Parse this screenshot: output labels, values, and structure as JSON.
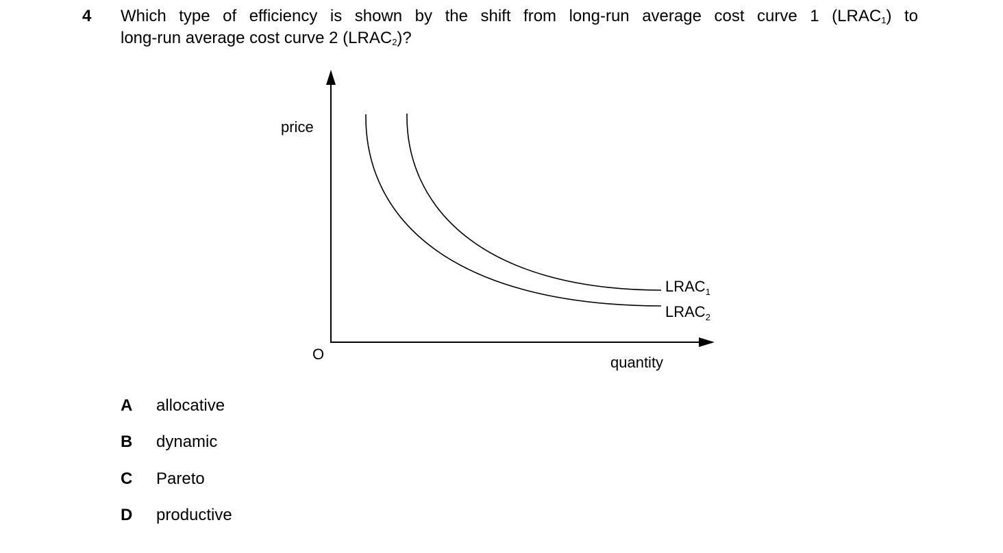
{
  "question": {
    "number": "4",
    "line1_prefix": "Which type of efficiency is shown by the shift from long-run average cost curve 1 (LRAC",
    "line1_sub": "1",
    "line1_suffix": ") to",
    "line2_prefix": "long-run average cost curve 2 (LRAC",
    "line2_sub": "2",
    "line2_suffix": ")?"
  },
  "diagram": {
    "y_axis_label": "price",
    "x_axis_label": "quantity",
    "origin_label": "O",
    "curve1_label": "LRAC",
    "curve1_sub": "1",
    "curve2_label": "LRAC",
    "curve2_sub": "2"
  },
  "options": [
    {
      "letter": "A",
      "text": "allocative"
    },
    {
      "letter": "B",
      "text": "dynamic"
    },
    {
      "letter": "C",
      "text": "Pareto"
    },
    {
      "letter": "D",
      "text": "productive"
    }
  ]
}
